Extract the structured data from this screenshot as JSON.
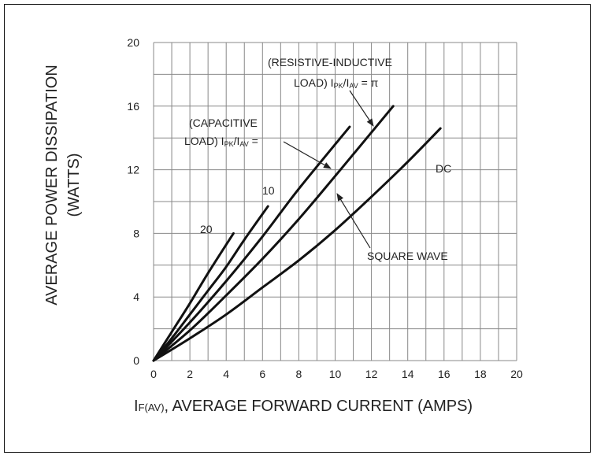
{
  "chart_data": {
    "type": "line",
    "title": "",
    "xlabel_main": "I",
    "xlabel_sub": "F(AV)",
    "xlabel_rest": ", AVERAGE FORWARD CURRENT (AMPS)",
    "ylabel_line1": "AVERAGE POWER DISSIPATION",
    "ylabel_line2": "(WATTS)",
    "xlim": [
      0,
      20
    ],
    "ylim": [
      0,
      20
    ],
    "xticks": [
      0,
      2,
      4,
      6,
      8,
      10,
      12,
      14,
      16,
      18,
      20
    ],
    "yticks": [
      0,
      4,
      8,
      12,
      16,
      20
    ],
    "grid": true,
    "series": [
      {
        "name": "20",
        "x": [
          0,
          1,
          2,
          3,
          4.4
        ],
        "y": [
          0,
          1.8,
          3.6,
          5.5,
          8.0
        ]
      },
      {
        "name": "10",
        "x": [
          0,
          1,
          2,
          3,
          4,
          5,
          6.3
        ],
        "y": [
          0,
          1.4,
          2.9,
          4.4,
          5.9,
          7.6,
          9.7
        ]
      },
      {
        "name": "CAPACITIVE",
        "x": [
          0,
          2,
          4,
          6,
          8,
          10.8
        ],
        "y": [
          0,
          2.4,
          5.0,
          7.8,
          10.8,
          14.7
        ]
      },
      {
        "name": "SQUARE WAVE",
        "x": [
          0,
          2,
          4,
          6,
          8,
          10,
          13.2
        ],
        "y": [
          0,
          1.9,
          4.1,
          6.4,
          8.9,
          11.6,
          16.0
        ]
      },
      {
        "name": "DC",
        "x": [
          0,
          2,
          4,
          6,
          8,
          10,
          12,
          14,
          15.8
        ],
        "y": [
          0,
          1.4,
          2.9,
          4.6,
          6.3,
          8.2,
          10.3,
          12.5,
          14.6
        ]
      }
    ],
    "annotations": {
      "label_20": "20",
      "label_10": "10",
      "cap_line1": "(CAPACITIVE",
      "cap_line2_a": "LOAD) I",
      "cap_line2_sub1": "PK",
      "cap_line2_b": "/I",
      "cap_line2_sub2": "AV",
      "cap_line2_c": " =",
      "res_line1": "(RESISTIVE-INDUCTIVE",
      "res_line2_a": "LOAD) I",
      "res_line2_sub1": "PK",
      "res_line2_b": "/I",
      "res_line2_sub2": "AV",
      "res_line2_c": "  = π",
      "square_wave": "SQUARE WAVE",
      "dc": "DC"
    }
  }
}
